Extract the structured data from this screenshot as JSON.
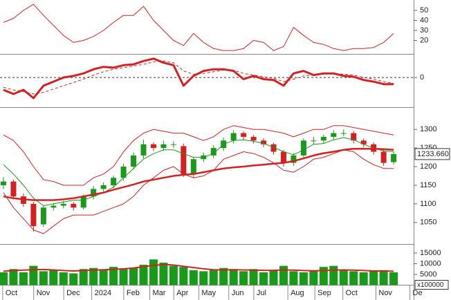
{
  "chart_data": [
    {
      "type": "line",
      "x": [
        0,
        1,
        2,
        3,
        4,
        5,
        6,
        7,
        8,
        9,
        10,
        11,
        12,
        13,
        14,
        15,
        16,
        17,
        18,
        19,
        20,
        21,
        22,
        23,
        24,
        25,
        26,
        27,
        28,
        29,
        30,
        31,
        32,
        33,
        34,
        35,
        36,
        37,
        38,
        39
      ],
      "xlim": [
        0,
        41
      ],
      "ylim": [
        6.6,
        60.3
      ],
      "yticks": [
        50,
        40,
        30,
        20
      ],
      "series": [
        {
          "color": "#d42020",
          "width": 1,
          "values": [
            38,
            42,
            50,
            56,
            45,
            35,
            25,
            18,
            20,
            24,
            30,
            38,
            45,
            45,
            54,
            40,
            30,
            20,
            15,
            27,
            18,
            12,
            10,
            10,
            12,
            20,
            18,
            10,
            14,
            33,
            25,
            18,
            16,
            12,
            10,
            12,
            12,
            13,
            18,
            27
          ]
        }
      ]
    },
    {
      "type": "line",
      "x": [
        0,
        1,
        2,
        3,
        4,
        5,
        6,
        7,
        8,
        9,
        10,
        11,
        12,
        13,
        14,
        15,
        16,
        17,
        18,
        19,
        20,
        21,
        22,
        23,
        24,
        25,
        26,
        27,
        28,
        29,
        30,
        31,
        32,
        33,
        34,
        35,
        36,
        37,
        38,
        39
      ],
      "xlim": [
        0,
        41
      ],
      "ylim": [
        -36,
        27
      ],
      "yticks": [
        0
      ],
      "grid": "dashed",
      "series": [
        {
          "color": "#d42020",
          "width": 3,
          "values": [
            -15,
            -20,
            -15,
            -25,
            -10,
            -5,
            0,
            2,
            5,
            10,
            13,
            12,
            15,
            16,
            20,
            23,
            18,
            15,
            -10,
            2,
            8,
            10,
            10,
            8,
            -2,
            2,
            -2,
            -3,
            -10,
            5,
            8,
            3,
            5,
            5,
            2,
            1,
            -3,
            -5,
            -8,
            -8
          ]
        },
        {
          "color": "#d42020",
          "width": 1,
          "style": "dashed",
          "values": [
            -12,
            -15,
            -17,
            -20,
            -18,
            -14,
            -10,
            -6,
            -2,
            3,
            7,
            10,
            12,
            14,
            16,
            19,
            20,
            18,
            8,
            4,
            5,
            7,
            9,
            9,
            5,
            3,
            1,
            -1,
            -5,
            -2,
            2,
            3,
            4,
            5,
            4,
            3,
            0,
            -2,
            -5,
            -7
          ]
        }
      ]
    },
    {
      "type": "candlestick",
      "x": [
        0,
        1,
        2,
        3,
        4,
        5,
        6,
        7,
        8,
        9,
        10,
        11,
        12,
        13,
        14,
        15,
        16,
        17,
        18,
        19,
        20,
        21,
        22,
        23,
        24,
        25,
        26,
        27,
        28,
        29,
        30,
        31,
        32,
        33,
        34,
        35,
        36,
        37,
        38,
        39
      ],
      "xlim": [
        0,
        41
      ],
      "ylim": [
        994,
        1356
      ],
      "yticks": [
        1050,
        1100,
        1150,
        1200,
        1250,
        1300
      ],
      "up_color": "#1a9a1a",
      "down_color": "#d42020",
      "open": [
        1150,
        1160,
        1120,
        1100,
        1045,
        1090,
        1095,
        1100,
        1090,
        1120,
        1140,
        1150,
        1170,
        1200,
        1230,
        1260,
        1250,
        1260,
        1255,
        1180,
        1220,
        1230,
        1250,
        1270,
        1290,
        1280,
        1270,
        1260,
        1240,
        1210,
        1230,
        1270,
        1270,
        1280,
        1290,
        1290,
        1270,
        1260,
        1240,
        1212
      ],
      "high": [
        1172,
        1165,
        1128,
        1105,
        1095,
        1102,
        1108,
        1105,
        1125,
        1148,
        1158,
        1176,
        1208,
        1238,
        1272,
        1265,
        1270,
        1268,
        1262,
        1226,
        1238,
        1258,
        1278,
        1298,
        1295,
        1285,
        1276,
        1264,
        1245,
        1236,
        1276,
        1280,
        1286,
        1298,
        1300,
        1296,
        1275,
        1265,
        1245,
        1240
      ],
      "low": [
        1140,
        1112,
        1092,
        1025,
        1038,
        1082,
        1088,
        1082,
        1085,
        1112,
        1132,
        1142,
        1162,
        1192,
        1222,
        1242,
        1242,
        1250,
        1172,
        1170,
        1212,
        1222,
        1242,
        1262,
        1272,
        1262,
        1252,
        1232,
        1200,
        1202,
        1222,
        1260,
        1262,
        1272,
        1282,
        1262,
        1252,
        1232,
        1202,
        1205
      ],
      "close": [
        1160,
        1120,
        1100,
        1040,
        1090,
        1095,
        1100,
        1090,
        1120,
        1140,
        1150,
        1170,
        1200,
        1230,
        1260,
        1250,
        1260,
        1260,
        1180,
        1220,
        1230,
        1250,
        1270,
        1290,
        1280,
        1270,
        1260,
        1240,
        1210,
        1230,
        1270,
        1270,
        1280,
        1290,
        1290,
        1270,
        1260,
        1240,
        1210,
        1233.66
      ],
      "series": [
        {
          "color": "#d42020",
          "width": 1,
          "values": [
            1285,
            1270,
            1240,
            1200,
            1165,
            1160,
            1150,
            1150,
            1150,
            1170,
            1180,
            1200,
            1240,
            1270,
            1290,
            1300,
            1295,
            1290,
            1290,
            1280,
            1270,
            1280,
            1300,
            1310,
            1305,
            1300,
            1300,
            1295,
            1290,
            1280,
            1290,
            1300,
            1300,
            1310,
            1310,
            1305,
            1300,
            1295,
            1290,
            1285
          ]
        },
        {
          "color": "#d42020",
          "width": 1,
          "values": [
            1130,
            1090,
            1060,
            1030,
            1020,
            1040,
            1060,
            1070,
            1070,
            1070,
            1080,
            1090,
            1100,
            1120,
            1150,
            1170,
            1190,
            1200,
            1180,
            1170,
            1175,
            1190,
            1220,
            1230,
            1240,
            1235,
            1225,
            1210,
            1190,
            1185,
            1200,
            1220,
            1225,
            1235,
            1245,
            1240,
            1220,
            1205,
            1195,
            1195
          ]
        },
        {
          "color": "#1a9a1a",
          "width": 1,
          "values": [
            1205,
            1180,
            1150,
            1115,
            1095,
            1100,
            1105,
            1110,
            1110,
            1120,
            1130,
            1145,
            1170,
            1195,
            1220,
            1235,
            1245,
            1245,
            1235,
            1225,
            1225,
            1235,
            1260,
            1270,
            1272,
            1268,
            1262,
            1252,
            1240,
            1232,
            1245,
            1260,
            1262,
            1272,
            1278,
            1272,
            1260,
            1250,
            1242,
            1240
          ]
        },
        {
          "color": "#d42020",
          "width": 2.5,
          "values": [
            1120,
            1115,
            1112,
            1110,
            1110,
            1110,
            1112,
            1115,
            1120,
            1125,
            1130,
            1138,
            1145,
            1152,
            1160,
            1165,
            1170,
            1175,
            1178,
            1180,
            1185,
            1190,
            1195,
            1198,
            1200,
            1203,
            1205,
            1208,
            1210,
            1215,
            1222,
            1230,
            1236,
            1240,
            1245,
            1248,
            1248,
            1248,
            1247,
            1245
          ]
        }
      ],
      "last_price": {
        "value": 1233.66,
        "label": "1233.660"
      }
    },
    {
      "type": "bar",
      "x": [
        0,
        1,
        2,
        3,
        4,
        5,
        6,
        7,
        8,
        9,
        10,
        11,
        12,
        13,
        14,
        15,
        16,
        17,
        18,
        19,
        20,
        21,
        22,
        23,
        24,
        25,
        26,
        27,
        28,
        29,
        30,
        31,
        32,
        33,
        34,
        35,
        36,
        37,
        38,
        39
      ],
      "xlim": [
        0,
        41
      ],
      "ylim": [
        0,
        18550
      ],
      "yticks": [
        5000,
        10000,
        15000
      ],
      "color": "#1a9a1a",
      "unit_label": "x100000",
      "values": [
        6000,
        7500,
        6000,
        9000,
        6500,
        7000,
        6000,
        5500,
        7500,
        8000,
        7000,
        8500,
        7500,
        8000,
        9500,
        12000,
        10500,
        9000,
        8500,
        7000,
        6500,
        7000,
        8000,
        7500,
        6500,
        7500,
        6000,
        7000,
        9000,
        6500,
        6000,
        7000,
        8500,
        9000,
        7000,
        6500,
        6000,
        6500,
        7000,
        6000
      ],
      "series": [
        {
          "color": "#d42020",
          "width": 2,
          "values": [
            6500,
            6800,
            7000,
            7200,
            7300,
            7100,
            6800,
            6600,
            6800,
            7000,
            7200,
            7400,
            7600,
            8000,
            8600,
            9200,
            9600,
            9400,
            8800,
            8200,
            7600,
            7200,
            7100,
            7200,
            7100,
            7000,
            6900,
            6900,
            7100,
            7000,
            6800,
            6700,
            6800,
            7000,
            7100,
            7000,
            6800,
            6600,
            6600,
            6500
          ]
        }
      ],
      "xticks": [
        {
          "value": 0.2,
          "label": "Oct"
        },
        {
          "value": 3.3,
          "label": "Nov"
        },
        {
          "value": 6.3,
          "label": "Dec"
        },
        {
          "value": 9.1,
          "label": "2024"
        },
        {
          "value": 12.3,
          "label": "Feb"
        },
        {
          "value": 14.9,
          "label": "Mar"
        },
        {
          "value": 17.3,
          "label": "Apr"
        },
        {
          "value": 19.8,
          "label": "May"
        },
        {
          "value": 22.8,
          "label": "Jun"
        },
        {
          "value": 25.3,
          "label": "Jul"
        },
        {
          "value": 28.7,
          "label": "Aug"
        },
        {
          "value": 31.4,
          "label": "Sep"
        },
        {
          "value": 34.2,
          "label": "Oct"
        },
        {
          "value": 37.5,
          "label": "Nov"
        },
        {
          "value": 40.9,
          "label": "De"
        }
      ]
    }
  ]
}
